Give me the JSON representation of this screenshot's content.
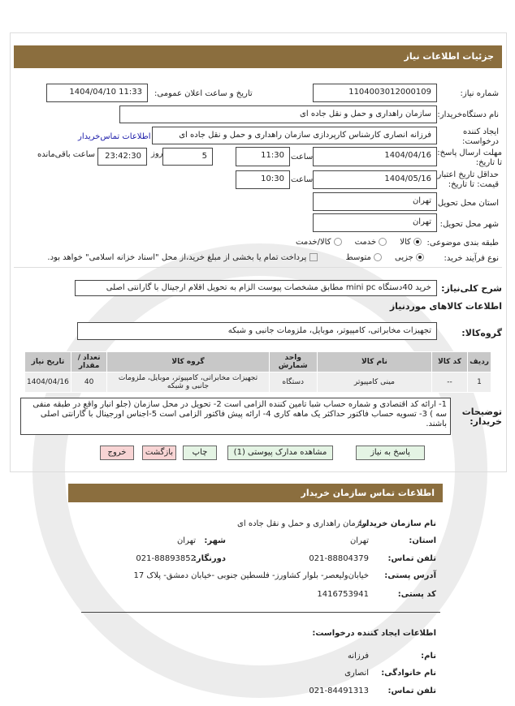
{
  "header": {
    "title": "جزئیات اطلاعات نیاز"
  },
  "form": {
    "need_number_label": "شماره نیاز:",
    "need_number": "1104003012000109",
    "announce_label": "تاریخ و ساعت اعلان عمومی:",
    "announce_value": "1404/04/10 11:33",
    "buyer_label": "نام دستگاه‌خریدار:",
    "buyer_value": "سازمان راهداری و حمل و نقل جاده ای",
    "creator_label": "ایجاد کننده درخواست:",
    "creator_value": "فرزانه انصاری کارشناس کارپردازی سازمان راهداری و حمل و نقل جاده ای",
    "contact_link": "اطلاعات تماس‌خریدار",
    "deadline_label": "مهلت ارسال پاسخ: تا تاریخ:",
    "deadline_date": "1404/04/16",
    "time_label": "ساعت",
    "deadline_time": "11:30",
    "days_label": "روز",
    "days_value": "5",
    "remaining_time": "23:42:30",
    "remaining_label": "ساعت باقی‌مانده",
    "validity_label": "حداقل تاریخ اعتبار قیمت: تا تاریخ:",
    "validity_date": "1404/05/16",
    "validity_time": "10:30",
    "province_label": "استان محل تحویل:",
    "province_value": "تهران",
    "city_label": "شهر محل تحویل:",
    "city_value": "تهران",
    "category_label": "طبقه بندی موضوعی:",
    "category_options": [
      "کالا",
      "خدمت",
      "کالا/خدمت"
    ],
    "process_label": "نوع فرآیند خرید:",
    "process_options": [
      "جزیی",
      "متوسط"
    ],
    "payment_note": "پرداخت تمام یا بخشی از مبلغ خرید،از محل \"اسناد خزانه اسلامی\" خواهد بود.",
    "description_label": "شرح کلی‌نیاز:",
    "description_value": "خرید 40دستگاه mini pc مطابق مشخصات پیوست الزام به تحویل اقلام ارجینال با گارانتی اصلی",
    "goods_title": "اطلاعات کالاهای موردنیاز",
    "group_label": "گروه‌کالا:",
    "group_value": "تجهیزات مخابراتی، کامپیوتر، موبایل، ملزومات جانبی و شبکه"
  },
  "table": {
    "headers": [
      "ردیف",
      "کد کالا",
      "نام کالا",
      "واحد شمارش",
      "گروه کالا",
      "تعداد / مقدار",
      "تاریخ نیاز"
    ],
    "rows": [
      [
        "1",
        "--",
        "مینی کامپیوتر",
        "دستگاه",
        "تجهیزات مخابراتی، کامپیوتر، موبایل، ملزومات جانبی و شبکه",
        "40",
        "1404/04/16"
      ]
    ]
  },
  "notes": {
    "label": "توضیحات خریدار:",
    "value": "1- ارائه کد اقتصادی و شماره حساب شبا تامین کننده الزامی است 2- تحویل در محل سازمان (جلو انبار واقع در طبقه منفی سه ) 3- تسویه حساب فاکتور حداکثر یک ماهه کاری 4- ارائه پیش فاکتور الزامی است 5-اجناس اورجینال با گارانتی اصلی باشند."
  },
  "buttons": {
    "reply": "پاسخ به نیاز",
    "attachments": "مشاهده مدارک پیوستی (1)",
    "print": "چاپ",
    "back": "بازگشت",
    "exit": "خروج"
  },
  "contact": {
    "title": "اطلاعات تماس سازمان خریدار",
    "org_label": "نام سازمان خریدار:",
    "org_value": "سازمان راهداری و حمل و نقل جاده ای",
    "province_label": "استان:",
    "province_value": "تهران",
    "city_label": "شهر:",
    "city_value": "تهران",
    "phone_label": "تلفن تماس:",
    "phone_value": "021-88804379",
    "fax_label": "دورنگار:",
    "fax_value": "021-88893852",
    "address_label": "آدرس پستی:",
    "address_value": "خیابان‌ولیعصر- بلوار کشاورز- فلسطین جنوبی -خیابان دمشق- پلاک 17",
    "postal_label": "کد پستی:",
    "postal_value": "1416753941",
    "creator_title": "اطلاعات ایجاد کننده درخواست:",
    "name_label": "نام:",
    "name_value": "فرزانه",
    "family_label": "نام خانوادگی:",
    "family_value": "انصاری",
    "creator_phone_label": "تلفن تماس:",
    "creator_phone_value": "021-84491313"
  },
  "colors": {
    "header": "#8b6e3e",
    "link": "#1a1aa8"
  }
}
